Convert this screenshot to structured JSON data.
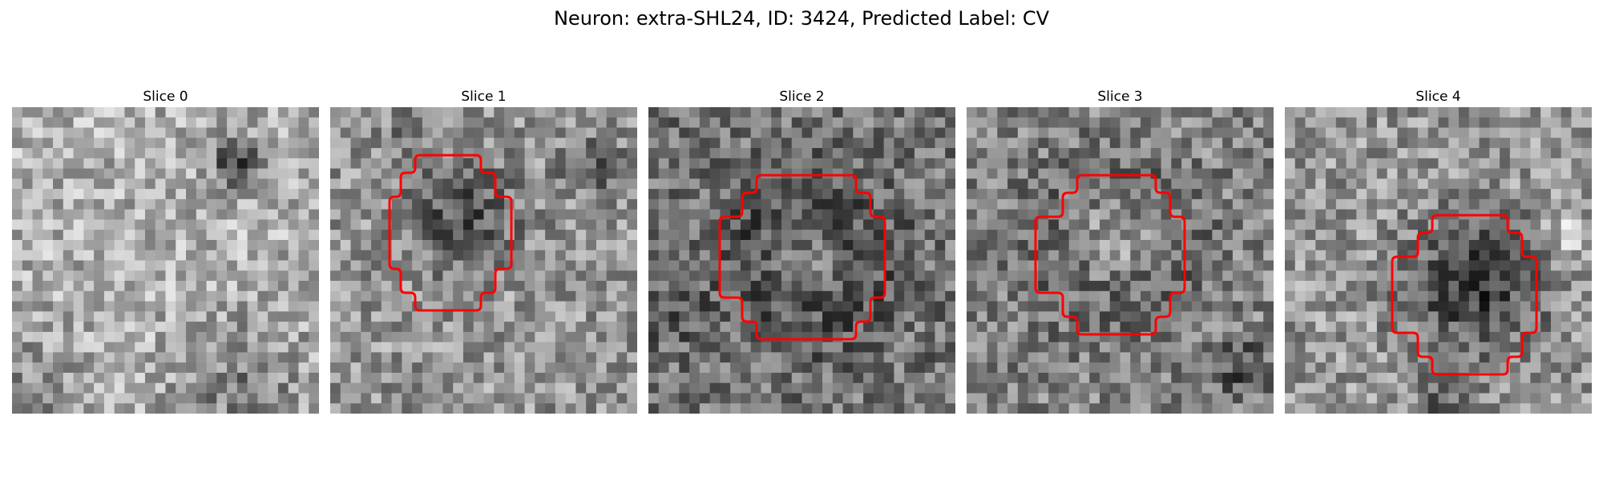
{
  "figure": {
    "title": "Neuron: extra-SHL24, ID: 3424, Predicted Label: CV"
  },
  "colors": {
    "background": "#ffffff",
    "outline": "#ff0000"
  },
  "panels": [
    {
      "title": "Slice 0",
      "has_outline": false
    },
    {
      "title": "Slice 1",
      "has_outline": true
    },
    {
      "title": "Slice 2",
      "has_outline": true
    },
    {
      "title": "Slice 3",
      "has_outline": true
    },
    {
      "title": "Slice 4",
      "has_outline": true
    }
  ]
}
